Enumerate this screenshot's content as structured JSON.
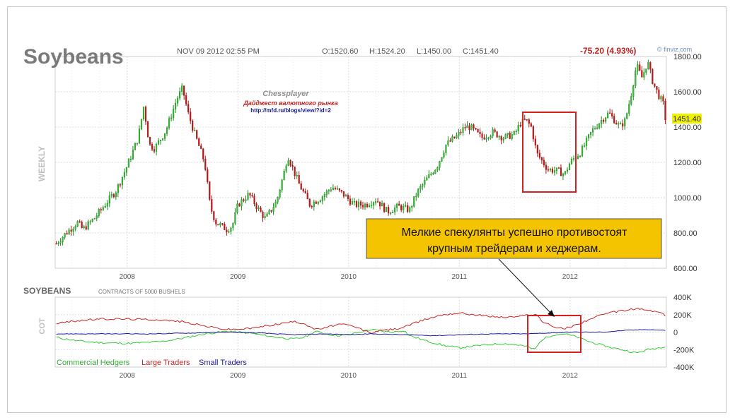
{
  "header": {
    "title": "Soybeans",
    "timestamp": "NOV 09 2012 02:55 PM",
    "ohlc": [
      "O:1520.60",
      "H:1524.20",
      "L:1450.00",
      "C:1451.40"
    ],
    "change": "-75.20 (4.93%)",
    "source": "finviz.com",
    "last_price": "1451.40"
  },
  "watermark": {
    "name": "Chessplayer",
    "subtitle": "Дайджест валютного рынка",
    "url": "http://mfd.ru/blogs/view/?id=2"
  },
  "annotation": {
    "text_line1": "Мелкие спекулянты успешно противостоят",
    "text_line2": "крупным трейдерам и хеджерам."
  },
  "colors": {
    "up": "#1f8f1f",
    "down": "#b01818",
    "commercial": "#33cc33",
    "large": "#cc2222",
    "small": "#1a1a9a",
    "highlight": "#d62020",
    "callout_bg": "#f5c400",
    "price_tag": "#f2f200"
  },
  "chart_data": [
    {
      "type": "candlestick",
      "title": "Soybeans",
      "ylabel": "WEEKLY",
      "timeframe": "weekly",
      "ylim": [
        600,
        1800
      ],
      "y_ticks": [
        "600.00",
        "800.00",
        "1000.00",
        "1200.00",
        "1400.00",
        "1600.00",
        "1800.00"
      ],
      "x_ticks": [
        "2008",
        "2009",
        "2010",
        "2011",
        "2012"
      ],
      "xlim": [
        2007.35,
        2012.87
      ],
      "anchors": [
        [
          2007.36,
          740
        ],
        [
          2007.45,
          800
        ],
        [
          2007.55,
          860
        ],
        [
          2007.6,
          820
        ],
        [
          2007.7,
          880
        ],
        [
          2007.8,
          960
        ],
        [
          2007.9,
          1040
        ],
        [
          2008.0,
          1180
        ],
        [
          2008.1,
          1340
        ],
        [
          2008.15,
          1520
        ],
        [
          2008.2,
          1300
        ],
        [
          2008.25,
          1280
        ],
        [
          2008.35,
          1380
        ],
        [
          2008.45,
          1560
        ],
        [
          2008.5,
          1620
        ],
        [
          2008.55,
          1480
        ],
        [
          2008.6,
          1380
        ],
        [
          2008.7,
          1200
        ],
        [
          2008.75,
          950
        ],
        [
          2008.8,
          860
        ],
        [
          2008.9,
          820
        ],
        [
          2008.95,
          840
        ],
        [
          2009.0,
          960
        ],
        [
          2009.1,
          1020
        ],
        [
          2009.2,
          920
        ],
        [
          2009.25,
          880
        ],
        [
          2009.35,
          980
        ],
        [
          2009.42,
          1150
        ],
        [
          2009.45,
          1240
        ],
        [
          2009.55,
          1080
        ],
        [
          2009.65,
          960
        ],
        [
          2009.75,
          1000
        ],
        [
          2009.85,
          1060
        ],
        [
          2009.95,
          1020
        ],
        [
          2010.05,
          960
        ],
        [
          2010.15,
          960
        ],
        [
          2010.25,
          990
        ],
        [
          2010.35,
          920
        ],
        [
          2010.45,
          950
        ],
        [
          2010.55,
          930
        ],
        [
          2010.62,
          1030
        ],
        [
          2010.7,
          1100
        ],
        [
          2010.8,
          1180
        ],
        [
          2010.88,
          1300
        ],
        [
          2010.98,
          1350
        ],
        [
          2011.05,
          1400
        ],
        [
          2011.1,
          1400
        ],
        [
          2011.2,
          1340
        ],
        [
          2011.3,
          1370
        ],
        [
          2011.4,
          1340
        ],
        [
          2011.5,
          1360
        ],
        [
          2011.55,
          1420
        ],
        [
          2011.6,
          1440
        ],
        [
          2011.65,
          1400
        ],
        [
          2011.7,
          1250
        ],
        [
          2011.8,
          1160
        ],
        [
          2011.9,
          1150
        ],
        [
          2011.95,
          1130
        ],
        [
          2012.0,
          1200
        ],
        [
          2012.1,
          1260
        ],
        [
          2012.2,
          1380
        ],
        [
          2012.3,
          1450
        ],
        [
          2012.35,
          1480
        ],
        [
          2012.45,
          1400
        ],
        [
          2012.5,
          1440
        ],
        [
          2012.55,
          1580
        ],
        [
          2012.6,
          1750
        ],
        [
          2012.65,
          1680
        ],
        [
          2012.7,
          1770
        ],
        [
          2012.75,
          1650
        ],
        [
          2012.8,
          1580
        ],
        [
          2012.85,
          1520
        ],
        [
          2012.86,
          1451
        ]
      ]
    },
    {
      "type": "line",
      "title": "SOYBEANS",
      "subtitle": "CONTRACTS OF 5000 BUSHELS",
      "ylabel": "COT",
      "ylim": [
        -400000,
        400000
      ],
      "y_ticks": [
        "-400K",
        "-200K",
        "0",
        "200K",
        "400K"
      ],
      "x_ticks": [
        "2008",
        "2009",
        "2010",
        "2011",
        "2012"
      ],
      "xlim": [
        2007.35,
        2012.87
      ],
      "series": [
        {
          "name": "Commercial Hedgers",
          "color": "#33cc33",
          "points": [
            [
              2007.36,
              -60000
            ],
            [
              2007.55,
              -100000
            ],
            [
              2007.75,
              -120000
            ],
            [
              2008.0,
              -130000
            ],
            [
              2008.3,
              -110000
            ],
            [
              2008.5,
              -70000
            ],
            [
              2008.7,
              -20000
            ],
            [
              2008.9,
              10000
            ],
            [
              2009.1,
              -10000
            ],
            [
              2009.3,
              -50000
            ],
            [
              2009.5,
              -80000
            ],
            [
              2009.6,
              -60000
            ],
            [
              2009.7,
              10000
            ],
            [
              2009.8,
              -20000
            ],
            [
              2009.9,
              -40000
            ],
            [
              2010.0,
              -30000
            ],
            [
              2010.1,
              0
            ],
            [
              2010.2,
              30000
            ],
            [
              2010.3,
              10000
            ],
            [
              2010.4,
              0
            ],
            [
              2010.5,
              20000
            ],
            [
              2010.55,
              -40000
            ],
            [
              2010.7,
              -100000
            ],
            [
              2010.85,
              -150000
            ],
            [
              2011.0,
              -180000
            ],
            [
              2011.2,
              -150000
            ],
            [
              2011.4,
              -130000
            ],
            [
              2011.55,
              -150000
            ],
            [
              2011.62,
              -170000
            ],
            [
              2011.68,
              -200000
            ],
            [
              2011.75,
              -80000
            ],
            [
              2011.85,
              -30000
            ],
            [
              2011.95,
              -20000
            ],
            [
              2012.05,
              -50000
            ],
            [
              2012.2,
              -120000
            ],
            [
              2012.35,
              -170000
            ],
            [
              2012.5,
              -210000
            ],
            [
              2012.6,
              -240000
            ],
            [
              2012.7,
              -200000
            ],
            [
              2012.8,
              -180000
            ],
            [
              2012.86,
              -160000
            ]
          ]
        },
        {
          "name": "Large Traders",
          "color": "#cc2222",
          "points": [
            [
              2007.36,
              100000
            ],
            [
              2007.55,
              130000
            ],
            [
              2007.75,
              150000
            ],
            [
              2008.0,
              150000
            ],
            [
              2008.3,
              140000
            ],
            [
              2008.5,
              120000
            ],
            [
              2008.7,
              70000
            ],
            [
              2008.9,
              30000
            ],
            [
              2009.1,
              40000
            ],
            [
              2009.3,
              80000
            ],
            [
              2009.5,
              120000
            ],
            [
              2009.6,
              100000
            ],
            [
              2009.7,
              30000
            ],
            [
              2009.8,
              50000
            ],
            [
              2009.9,
              90000
            ],
            [
              2010.0,
              80000
            ],
            [
              2010.1,
              40000
            ],
            [
              2010.2,
              -10000
            ],
            [
              2010.3,
              20000
            ],
            [
              2010.45,
              40000
            ],
            [
              2010.55,
              80000
            ],
            [
              2010.7,
              150000
            ],
            [
              2010.85,
              200000
            ],
            [
              2011.0,
              220000
            ],
            [
              2011.2,
              190000
            ],
            [
              2011.4,
              170000
            ],
            [
              2011.55,
              180000
            ],
            [
              2011.62,
              200000
            ],
            [
              2011.7,
              200000
            ],
            [
              2011.75,
              120000
            ],
            [
              2011.85,
              60000
            ],
            [
              2011.95,
              40000
            ],
            [
              2012.05,
              80000
            ],
            [
              2012.2,
              160000
            ],
            [
              2012.35,
              220000
            ],
            [
              2012.5,
              250000
            ],
            [
              2012.6,
              270000
            ],
            [
              2012.7,
              250000
            ],
            [
              2012.8,
              230000
            ],
            [
              2012.86,
              190000
            ]
          ]
        },
        {
          "name": "Small Traders",
          "color": "#1a1a9a",
          "points": [
            [
              2007.36,
              -20000
            ],
            [
              2007.8,
              -20000
            ],
            [
              2008.2,
              -20000
            ],
            [
              2008.6,
              -10000
            ],
            [
              2008.9,
              0
            ],
            [
              2009.2,
              -10000
            ],
            [
              2009.5,
              -30000
            ],
            [
              2009.8,
              -20000
            ],
            [
              2010.0,
              -30000
            ],
            [
              2010.2,
              -20000
            ],
            [
              2010.5,
              -30000
            ],
            [
              2010.8,
              -40000
            ],
            [
              2011.0,
              -30000
            ],
            [
              2011.3,
              -20000
            ],
            [
              2011.6,
              -20000
            ],
            [
              2011.8,
              -10000
            ],
            [
              2012.0,
              0
            ],
            [
              2012.3,
              0
            ],
            [
              2012.5,
              20000
            ],
            [
              2012.7,
              30000
            ],
            [
              2012.86,
              20000
            ]
          ]
        }
      ]
    }
  ]
}
